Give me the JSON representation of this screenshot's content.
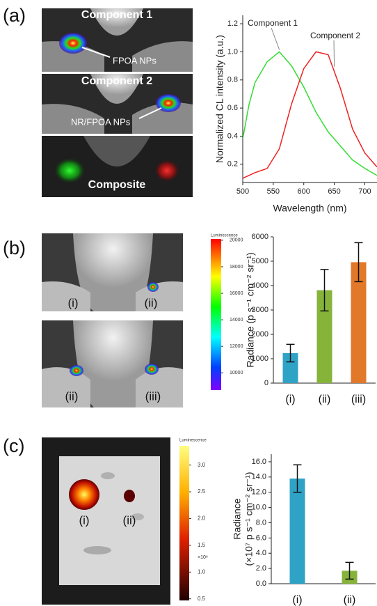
{
  "figure": {
    "panels": [
      "(a)",
      "(b)",
      "(c)"
    ],
    "a_images": [
      "Component 1",
      "FPOA NPs",
      "Component 2",
      "NR/FPOA NPs",
      "Composite"
    ],
    "b_images": [
      "(i)",
      "(ii)",
      "(ii)",
      "(iii)"
    ],
    "c_images": [
      "(i)",
      "(ii)"
    ],
    "colorbars": [
      {
        "title": "Luminescence",
        "lim": [
          8700,
          20100
        ],
        "ticks": [
          20000,
          18000,
          16000,
          14000,
          12000,
          10000
        ]
      },
      {
        "title": "Luminescence",
        "lim": [
          0.47,
          3.36
        ],
        "unit": "×10⁸",
        "ticks": [
          {
            "value": 3,
            "label": "3.0"
          },
          2.5,
          {
            "value": 2,
            "label": "2.0"
          },
          1.5,
          {
            "value": 1,
            "label": "1.0"
          },
          0.5
        ]
      }
    ]
  },
  "chart_data": [
    {
      "type": "line",
      "x_label": "Wavelength (nm)",
      "y_label": "Normalized CL intensity (a.u.)",
      "x": [
        500,
        510,
        520,
        540,
        560,
        580,
        600,
        620,
        640,
        660,
        680,
        700,
        720
      ],
      "series": [
        {
          "name": "Component 1",
          "color": "#33dd33",
          "values": [
            0.38,
            0.62,
            0.78,
            0.93,
            1.0,
            0.9,
            0.75,
            0.57,
            0.43,
            0.33,
            0.23,
            0.17,
            0.12
          ]
        },
        {
          "name": "Component 2",
          "color": "#ee2222",
          "values": [
            0.1,
            0.12,
            0.14,
            0.17,
            0.31,
            0.63,
            0.88,
            1.0,
            0.98,
            0.74,
            0.45,
            0.28,
            0.18
          ]
        }
      ],
      "xlim": [
        500,
        720
      ],
      "xticks": [
        500,
        550,
        600,
        650,
        700
      ],
      "ylim": [
        0.07,
        1.26
      ],
      "yticks": [
        0.2,
        0.4,
        0.6,
        0.8,
        {
          "value": 1,
          "label": "1.0"
        },
        1.2
      ]
    },
    {
      "type": "bar",
      "y_label": "Radiance (p s⁻¹ cm⁻² sr⁻¹)",
      "categories": [
        "(i)",
        "(ii)",
        "(iii)"
      ],
      "values": [
        1230,
        3810,
        4960
      ],
      "errors": [
        360,
        850,
        800
      ],
      "colors": [
        "#2fa3c6",
        "#86b43a",
        "#e2782a"
      ],
      "ylim": [
        0,
        6000
      ],
      "yticks": [
        0,
        1000,
        2000,
        3000,
        4000,
        5000,
        6000
      ]
    },
    {
      "type": "bar",
      "y_label": [
        "Radiance",
        "(×10⁷ p s⁻¹ cm⁻² sr⁻¹)"
      ],
      "categories": [
        "(i)",
        "(ii)"
      ],
      "values": [
        13.8,
        1.7
      ],
      "errors": [
        1.8,
        1.1
      ],
      "colors": [
        "#2fa3c6",
        "#86b43a"
      ],
      "ylim": [
        0,
        17
      ],
      "yticks": [
        {
          "value": 0,
          "label": "0.0"
        },
        {
          "value": 2,
          "label": "2.0"
        },
        {
          "value": 4,
          "label": "4.0"
        },
        {
          "value": 6,
          "label": "6.0"
        },
        {
          "value": 8,
          "label": "8.0"
        },
        {
          "value": 10,
          "label": "10.0"
        },
        {
          "value": 12,
          "label": "12.0"
        },
        {
          "value": 14,
          "label": "14.0"
        },
        {
          "value": 16,
          "label": "16.0"
        }
      ]
    }
  ]
}
